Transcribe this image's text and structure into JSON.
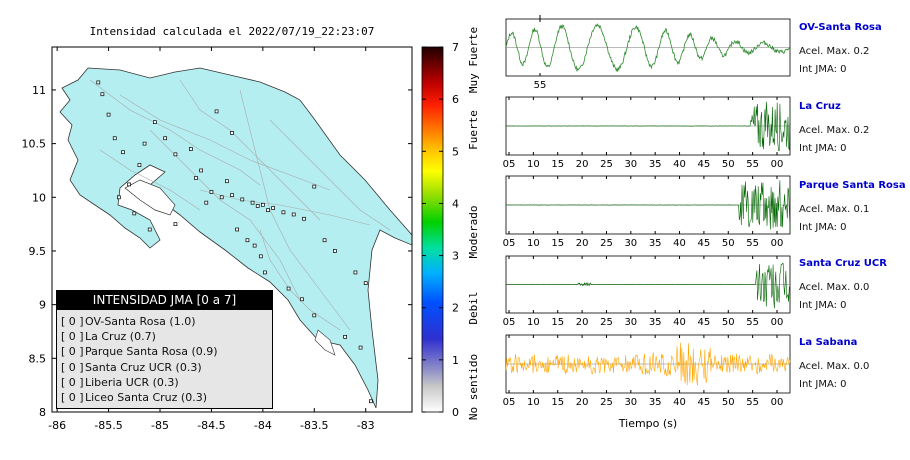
{
  "title": "Intensidad calculada el 2022/07/19_22:23:07",
  "map": {
    "xticks": [
      "-86",
      "-85.5",
      "-85",
      "-84.5",
      "-84",
      "-83.5",
      "-83"
    ],
    "yticks": [
      "11",
      "10.5",
      "10",
      "9.5",
      "9",
      "8.5",
      "8"
    ],
    "xlim": [
      -86.05,
      -82.55
    ],
    "ylim": [
      8.0,
      11.4
    ]
  },
  "colorbar": {
    "ticks": [
      "7",
      "6",
      "5",
      "4",
      "3",
      "2",
      "1",
      "0"
    ],
    "labels": [
      "Muy Fuerte",
      "Fuerte",
      "Moderado",
      "Debil",
      "No sentido"
    ]
  },
  "legend": {
    "title": "INTENSIDAD JMA [0 a 7]",
    "items": [
      {
        "bracket": "[ 0 ]",
        "name": "OV-Santa Rosa (1.0)"
      },
      {
        "bracket": "[ 0 ]",
        "name": "La Cruz (0.7)"
      },
      {
        "bracket": "[ 0 ]",
        "name": "Parque Santa Rosa (0.9)"
      },
      {
        "bracket": "[ 0 ]",
        "name": "Santa Cruz UCR (0.3)"
      },
      {
        "bracket": "[ 0 ]",
        "name": "Liberia UCR (0.3)"
      },
      {
        "bracket": "[ 0 ]",
        "name": "Liceo Santa Cruz (0.3)"
      }
    ]
  },
  "waveforms": [
    {
      "name": "OV-Santa Rosa",
      "acel": "Acel. Max. 0.2",
      "int": "Int JMA: 0",
      "ticks": [
        "55"
      ],
      "color": "#2e8b2e"
    },
    {
      "name": "La Cruz",
      "acel": "Acel. Max. 0.2",
      "int": "Int JMA: 0",
      "ticks": [
        "05",
        "10",
        "15",
        "20",
        "25",
        "30",
        "35",
        "40",
        "45",
        "50",
        "55",
        "00"
      ],
      "color": "#006400"
    },
    {
      "name": "Parque Santa Rosa",
      "acel": "Acel. Max. 0.1",
      "int": "Int JMA: 0",
      "ticks": [
        "05",
        "10",
        "15",
        "20",
        "25",
        "30",
        "35",
        "40",
        "45",
        "50",
        "55",
        "00"
      ],
      "color": "#006400"
    },
    {
      "name": "Santa Cruz UCR",
      "acel": "Acel. Max. 0.0",
      "int": "Int JMA: 0",
      "ticks": [
        "05",
        "10",
        "15",
        "20",
        "25",
        "30",
        "35",
        "40",
        "45",
        "50",
        "55",
        "00"
      ],
      "color": "#006400"
    },
    {
      "name": "La Sabana",
      "acel": "Acel. Max. 0.0",
      "int": "Int JMA: 0",
      "ticks": [
        "05",
        "10",
        "15",
        "20",
        "25",
        "30",
        "35",
        "40",
        "45",
        "50",
        "55",
        "00"
      ],
      "color": "#ffa500"
    }
  ],
  "xlabel_wave": "Tiempo (s)",
  "chart_data": [
    {
      "type": "scatter",
      "title": "Intensidad calculada el 2022/07/19_22:23:07",
      "xlabel": "",
      "ylabel": "",
      "xlim": [
        -86.05,
        -82.55
      ],
      "ylim": [
        8.0,
        11.4
      ],
      "x": [
        -85.6,
        -85.56,
        -85.5,
        -85.44,
        -85.36,
        -85.3,
        -85.2,
        -85.15,
        -85.05,
        -84.95,
        -84.85,
        -84.7,
        -84.6,
        -84.5,
        -84.4,
        -84.3,
        -84.2,
        -84.1,
        -84.05,
        -84.0,
        -83.95,
        -83.9,
        -83.8,
        -83.7,
        -83.6,
        -83.5,
        -83.4,
        -83.3,
        -83.1,
        -83.0,
        -82.95,
        -85.4,
        -85.25,
        -84.85,
        -84.55,
        -84.35,
        -84.25,
        -84.15,
        -84.08,
        -84.02,
        -83.98,
        -83.75,
        -83.62,
        -83.5,
        -83.2,
        -83.05,
        -84.3,
        -84.45,
        -85.1,
        -84.65
      ],
      "y": [
        11.07,
        10.96,
        10.77,
        10.55,
        10.42,
        10.12,
        10.3,
        10.5,
        10.7,
        10.55,
        10.4,
        10.45,
        10.25,
        10.05,
        10.0,
        10.02,
        9.98,
        9.95,
        9.92,
        9.93,
        9.88,
        9.9,
        9.86,
        9.84,
        9.8,
        10.1,
        9.6,
        9.5,
        9.3,
        9.2,
        8.1,
        10.0,
        9.85,
        9.75,
        9.95,
        10.15,
        9.7,
        9.6,
        9.55,
        9.45,
        9.3,
        9.15,
        9.05,
        8.9,
        8.7,
        8.6,
        10.6,
        10.8,
        9.7,
        10.18
      ],
      "series_values_note": "",
      "values": [
        0,
        0,
        0,
        0,
        0,
        0,
        0,
        0,
        0,
        0,
        0,
        0,
        0,
        0,
        0,
        0,
        0,
        0,
        0,
        0,
        0,
        0,
        0,
        0,
        0,
        0,
        0,
        0,
        0,
        0,
        0,
        0,
        0,
        0,
        0,
        0,
        0,
        0,
        0,
        0,
        0,
        0,
        0,
        0,
        0,
        0,
        0,
        0,
        0,
        0
      ]
    },
    {
      "type": "line",
      "title": "",
      "xlabel": "Tiempo (s)",
      "ylabel": "",
      "categories": [
        "05",
        "10",
        "15",
        "20",
        "25",
        "30",
        "35",
        "40",
        "45",
        "50",
        "55",
        "00"
      ],
      "series": [
        {
          "name": "OV-Santa Rosa",
          "amplitude_max": 0.2
        },
        {
          "name": "La Cruz",
          "amplitude_max": 0.2
        },
        {
          "name": "Parque Santa Rosa",
          "amplitude_max": 0.1
        },
        {
          "name": "Santa Cruz UCR",
          "amplitude_max": 0.0
        },
        {
          "name": "La Sabana",
          "amplitude_max": 0.0
        }
      ]
    }
  ]
}
